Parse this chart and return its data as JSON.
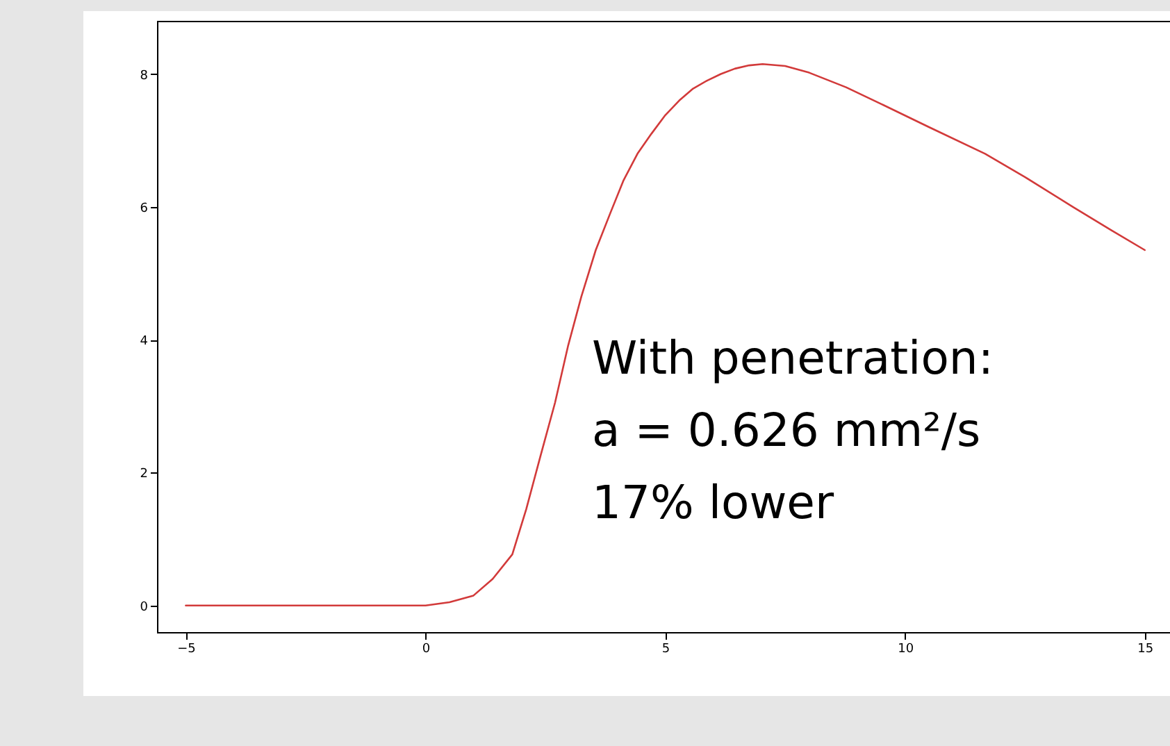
{
  "chart_data": {
    "type": "line",
    "xlim": [
      -5.6,
      15.7
    ],
    "ylim": [
      -0.4,
      8.8
    ],
    "xticks": [
      -5,
      0,
      5,
      10,
      15
    ],
    "yticks": [
      0,
      2,
      4,
      6,
      8
    ],
    "grid": false,
    "series": [
      {
        "color": "#d23a3a",
        "x": [
          -5,
          -3,
          -1,
          0,
          0.5,
          1,
          1.4,
          1.81,
          2.1,
          2.39,
          2.7,
          2.97,
          3.25,
          3.55,
          3.85,
          4.13,
          4.42,
          4.71,
          5,
          5.29,
          5.58,
          5.87,
          6.16,
          6.45,
          6.75,
          7.03,
          7.5,
          8,
          8.77,
          9.5,
          10.5,
          11.67,
          12.5,
          13.5,
          14.3,
          15
        ],
        "values": [
          0,
          0,
          0,
          0,
          0.05,
          0.15,
          0.4,
          0.77,
          1.45,
          2.23,
          3.05,
          3.9,
          4.65,
          5.35,
          5.9,
          6.4,
          6.8,
          7.1,
          7.38,
          7.6,
          7.78,
          7.9,
          8.0,
          8.08,
          8.13,
          8.15,
          8.12,
          8.02,
          7.8,
          7.55,
          7.2,
          6.8,
          6.45,
          6.0,
          5.65,
          5.35
        ]
      }
    ],
    "annotations": [
      "With penetration:",
      "a = 0.626 mm²/s",
      "17% lower"
    ]
  }
}
